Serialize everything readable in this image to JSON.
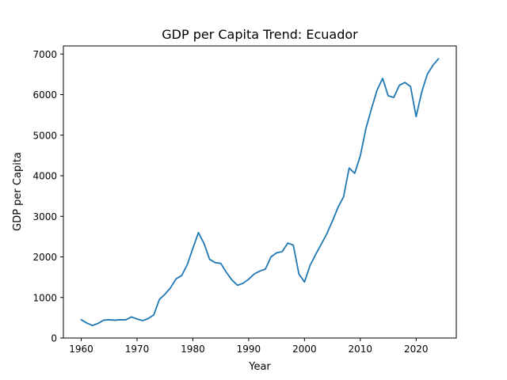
{
  "chart_data": {
    "type": "line",
    "title": "GDP per Capita Trend: Ecuador",
    "xlabel": "Year",
    "ylabel": "GDP per Capita",
    "xlim": [
      1956.8,
      2027.2
    ],
    "ylim": [
      0,
      7200
    ],
    "xticks": [
      1960,
      1970,
      1980,
      1990,
      2000,
      2010,
      2020
    ],
    "yticks": [
      0,
      1000,
      2000,
      3000,
      4000,
      5000,
      6000,
      7000
    ],
    "grid": false,
    "line_color": "#1f77b4",
    "series": [
      {
        "x": [
          1960,
          1961,
          1962,
          1963,
          1964,
          1965,
          1966,
          1967,
          1968,
          1969,
          1970,
          1971,
          1972,
          1973,
          1974,
          1975,
          1976,
          1977,
          1978,
          1979,
          1980,
          1981,
          1982,
          1983,
          1984,
          1985,
          1986,
          1987,
          1988,
          1989,
          1990,
          1991,
          1992,
          1993,
          1994,
          1995,
          1996,
          1997,
          1998,
          1999,
          2000,
          2001,
          2002,
          2003,
          2004,
          2005,
          2006,
          2007,
          2008,
          2009,
          2010,
          2011,
          2012,
          2013,
          2014,
          2015,
          2016,
          2017,
          2018,
          2019,
          2020,
          2021,
          2022,
          2023,
          2024
        ],
        "values": [
          450,
          370,
          310,
          360,
          440,
          450,
          440,
          450,
          450,
          520,
          470,
          430,
          480,
          570,
          950,
          1080,
          1240,
          1460,
          1540,
          1810,
          2210,
          2600,
          2330,
          1940,
          1860,
          1840,
          1620,
          1430,
          1300,
          1350,
          1450,
          1580,
          1650,
          1700,
          2000,
          2100,
          2130,
          2340,
          2290,
          1580,
          1380,
          1790,
          2060,
          2310,
          2570,
          2880,
          3220,
          3480,
          4190,
          4060,
          4490,
          5160,
          5650,
          6110,
          6400,
          5970,
          5930,
          6230,
          6300,
          6200,
          5460,
          6060,
          6500,
          6720,
          6880
        ]
      }
    ]
  }
}
